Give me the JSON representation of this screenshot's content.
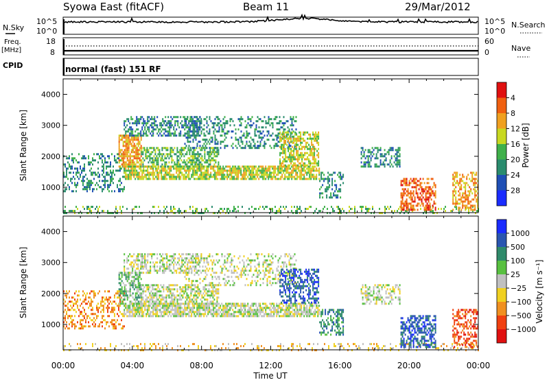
{
  "header": {
    "station": "Syowa East (fitACF)",
    "beam": "Beam 11",
    "date": "29/Mar/2012"
  },
  "status_panels": {
    "nsky": {
      "label": "N.Sky",
      "y_ticks": [
        "10^5",
        "10^0"
      ],
      "right_label": "N.Search",
      "right_ticks": [
        "10^5",
        "10^0"
      ]
    },
    "freq": {
      "label_line1": "Freq.",
      "label_line2": "[MHz]",
      "y_ticks": [
        "18",
        "8"
      ],
      "right_label": "Nave",
      "right_ticks": [
        "60",
        "0"
      ]
    },
    "cpid": {
      "label": "CPID",
      "text": "normal (fast) 151 RF"
    }
  },
  "chart_data": [
    {
      "type": "heatmap",
      "name": "power",
      "ylabel": "Slant Range [km]",
      "xlabel": "",
      "x_range_hours": [
        0,
        24
      ],
      "x_ticks": [
        "00:00",
        "04:00",
        "08:00",
        "12:00",
        "16:00",
        "20:00",
        "00:00"
      ],
      "ylim": [
        180,
        4500
      ],
      "y_ticks": [
        1000,
        2000,
        3000,
        4000
      ],
      "colorbar": {
        "label": "Power [dB]",
        "ticks": [
          "4",
          "8",
          "12",
          "16",
          "20",
          "24",
          "28"
        ],
        "colors": [
          "#1a2cff",
          "#1f4fb5",
          "#2a8c6e",
          "#3fb04a",
          "#c8d820",
          "#f0a020",
          "#f06010",
          "#e01010"
        ]
      },
      "echo_regions": [
        {
          "t0": 0.0,
          "t1": 3.5,
          "r0": 900,
          "r1": 2100,
          "level": 2,
          "density": 0.35
        },
        {
          "t0": 0.0,
          "t1": 24.0,
          "r0": 180,
          "r1": 400,
          "level": 3,
          "density": 0.25
        },
        {
          "t0": 3.2,
          "t1": 4.5,
          "r0": 1700,
          "r1": 2700,
          "level": 5,
          "density": 0.7
        },
        {
          "t0": 3.5,
          "t1": 14.8,
          "r0": 1300,
          "r1": 1700,
          "level": 4,
          "density": 0.75
        },
        {
          "t0": 4.5,
          "t1": 9.0,
          "r0": 1700,
          "r1": 2300,
          "level": 3,
          "density": 0.55
        },
        {
          "t0": 3.5,
          "t1": 8.0,
          "r0": 2700,
          "r1": 3300,
          "level": 2,
          "density": 0.5
        },
        {
          "t0": 7.0,
          "t1": 13.5,
          "r0": 2300,
          "r1": 3300,
          "level": 2,
          "density": 0.35
        },
        {
          "t0": 12.5,
          "t1": 14.8,
          "r0": 1700,
          "r1": 2800,
          "level": 4,
          "density": 0.6
        },
        {
          "t0": 14.8,
          "t1": 16.2,
          "r0": 700,
          "r1": 1500,
          "level": 2,
          "density": 0.4
        },
        {
          "t0": 17.2,
          "t1": 19.5,
          "r0": 1700,
          "r1": 2300,
          "level": 2,
          "density": 0.45
        },
        {
          "t0": 19.5,
          "t1": 21.5,
          "r0": 300,
          "r1": 1300,
          "level": 6,
          "density": 0.55
        },
        {
          "t0": 22.5,
          "t1": 24.0,
          "r0": 300,
          "r1": 1500,
          "level": 5,
          "density": 0.45
        }
      ]
    },
    {
      "type": "heatmap",
      "name": "velocity",
      "ylabel": "Slant Range [km]",
      "xlabel": "Time UT",
      "x_range_hours": [
        0,
        24
      ],
      "x_ticks": [
        "00:00",
        "04:00",
        "08:00",
        "12:00",
        "16:00",
        "20:00",
        "00:00"
      ],
      "ylim": [
        180,
        4500
      ],
      "y_ticks": [
        1000,
        2000,
        3000,
        4000
      ],
      "colorbar": {
        "label": "Velocity [m s⁻¹]",
        "ticks": [
          "1000",
          "500",
          "100",
          "25",
          "−25",
          "−100",
          "−500",
          "−1000"
        ],
        "colors": [
          "#1a2cff",
          "#2a56b0",
          "#2f8a6a",
          "#58c040",
          "#c0c0c0",
          "#f0d020",
          "#f09020",
          "#f04010",
          "#e01010"
        ]
      },
      "echo_regions": [
        {
          "t0": 0.0,
          "t1": 3.5,
          "r0": 900,
          "r1": 2100,
          "level": 6,
          "density": 0.35
        },
        {
          "t0": 0.0,
          "t1": 24.0,
          "r0": 180,
          "r1": 400,
          "level": 5,
          "density": 0.2
        },
        {
          "t0": 3.2,
          "t1": 4.5,
          "r0": 1700,
          "r1": 2700,
          "level": 3,
          "density": 0.6
        },
        {
          "t0": 3.5,
          "t1": 14.8,
          "r0": 1300,
          "r1": 1700,
          "level": 4,
          "density": 0.75
        },
        {
          "t0": 4.5,
          "t1": 9.0,
          "r0": 1700,
          "r1": 2300,
          "level": 4,
          "density": 0.55
        },
        {
          "t0": 3.5,
          "t1": 8.0,
          "r0": 2700,
          "r1": 3300,
          "level": 4,
          "density": 0.45
        },
        {
          "t0": 7.0,
          "t1": 13.5,
          "r0": 2300,
          "r1": 3300,
          "level": 4,
          "density": 0.3
        },
        {
          "t0": 12.5,
          "t1": 14.8,
          "r0": 1700,
          "r1": 2800,
          "level": 1,
          "density": 0.55
        },
        {
          "t0": 14.8,
          "t1": 16.2,
          "r0": 700,
          "r1": 1500,
          "level": 2,
          "density": 0.45
        },
        {
          "t0": 17.2,
          "t1": 19.5,
          "r0": 1700,
          "r1": 2300,
          "level": 4,
          "density": 0.45
        },
        {
          "t0": 19.5,
          "t1": 21.5,
          "r0": 300,
          "r1": 1300,
          "level": 1,
          "density": 0.55
        },
        {
          "t0": 22.5,
          "t1": 24.0,
          "r0": 300,
          "r1": 1500,
          "level": 7,
          "density": 0.45
        }
      ]
    }
  ]
}
